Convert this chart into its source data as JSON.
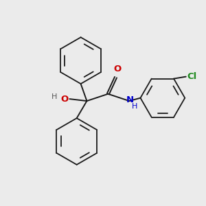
{
  "background_color": "#ebebeb",
  "bond_color": "#1a1a1a",
  "O_color": "#cc0000",
  "N_color": "#0000cc",
  "Cl_color": "#228B22",
  "H_color": "#555555",
  "figsize": [
    3.0,
    3.0
  ],
  "dpi": 100,
  "xlim": [
    0,
    10
  ],
  "ylim": [
    0,
    10
  ]
}
